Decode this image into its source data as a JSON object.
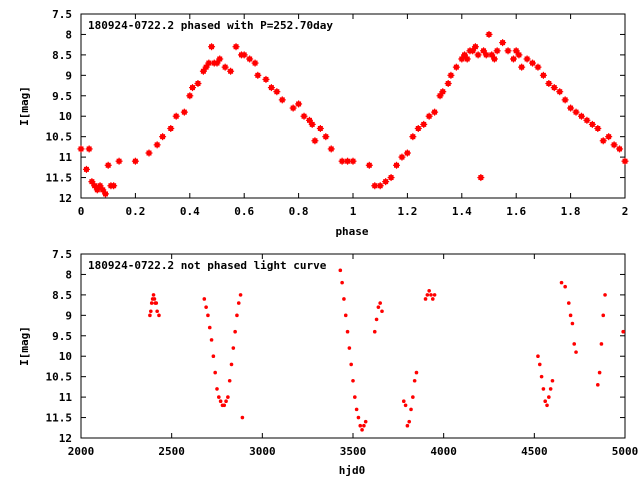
{
  "chart_data": [
    {
      "type": "scatter",
      "title": "180924-0722.2 phased with P=252.70day",
      "xlabel": "phase",
      "ylabel": "I[mag]",
      "xlim": [
        0,
        2
      ],
      "ylim": [
        12,
        7.5
      ],
      "y_inverted": true,
      "x_ticks": [
        0,
        0.2,
        0.4,
        0.6,
        0.8,
        1,
        1.2,
        1.4,
        1.6,
        1.8,
        2
      ],
      "y_ticks": [
        7.5,
        8,
        8.5,
        9,
        9.5,
        10,
        10.5,
        11,
        11.5,
        12
      ],
      "marker": "plus-star",
      "color": "#ff0000",
      "series": [
        {
          "x": [
            0.0,
            0.02,
            0.03,
            0.04,
            0.05,
            0.06,
            0.07,
            0.08,
            0.09,
            0.1,
            0.11,
            0.12,
            0.14,
            0.2,
            0.25,
            0.28,
            0.3,
            0.33,
            0.35,
            0.38,
            0.4,
            0.41,
            0.43,
            0.45,
            0.46,
            0.47,
            0.48,
            0.49,
            0.5,
            0.51,
            0.53,
            0.55,
            0.57,
            0.59,
            0.6,
            0.62,
            0.64,
            0.65,
            0.68,
            0.7,
            0.72,
            0.74,
            0.78,
            0.8,
            0.82,
            0.84,
            0.85,
            0.86,
            0.88,
            0.9,
            0.92,
            0.96,
            0.98,
            1.0,
            1.06,
            1.08,
            1.1,
            1.12,
            1.14,
            1.16,
            1.18,
            1.2,
            1.22,
            1.24,
            1.26,
            1.28,
            1.3,
            1.32,
            1.33,
            1.35,
            1.36,
            1.38,
            1.4,
            1.41,
            1.42,
            1.43,
            1.44,
            1.45,
            1.46,
            1.47,
            1.48,
            1.49,
            1.5,
            1.51,
            1.52,
            1.53,
            1.55,
            1.57,
            1.59,
            1.6,
            1.61,
            1.62,
            1.64,
            1.66,
            1.68,
            1.7,
            1.72,
            1.74,
            1.76,
            1.78,
            1.8,
            1.82,
            1.84,
            1.86,
            1.88,
            1.9,
            1.92,
            1.94,
            1.96,
            1.98,
            2.0
          ],
          "y": [
            10.8,
            11.3,
            10.8,
            11.6,
            11.7,
            11.8,
            11.7,
            11.8,
            11.9,
            11.2,
            11.7,
            11.7,
            11.1,
            11.1,
            10.9,
            10.7,
            10.5,
            10.3,
            10.0,
            9.9,
            9.5,
            9.3,
            9.2,
            8.9,
            8.8,
            8.7,
            8.3,
            8.7,
            8.7,
            8.6,
            8.8,
            8.9,
            8.3,
            8.5,
            8.5,
            8.6,
            8.7,
            9.0,
            9.1,
            9.3,
            9.4,
            9.6,
            9.8,
            9.7,
            10.0,
            10.1,
            10.2,
            10.6,
            10.3,
            10.5,
            10.8,
            11.1,
            11.1,
            11.1,
            11.2,
            11.7,
            11.7,
            11.6,
            11.5,
            11.2,
            11.0,
            10.9,
            10.5,
            10.3,
            10.2,
            10.0,
            9.9,
            9.5,
            9.4,
            9.2,
            9.0,
            8.8,
            8.6,
            8.5,
            8.6,
            8.4,
            8.4,
            8.3,
            8.5,
            11.5,
            8.4,
            8.5,
            8.0,
            8.5,
            8.6,
            8.4,
            8.2,
            8.4,
            8.6,
            8.4,
            8.5,
            8.8,
            8.6,
            8.7,
            8.8,
            9.0,
            9.2,
            9.3,
            9.4,
            9.6,
            9.8,
            9.9,
            10.0,
            10.1,
            10.2,
            10.3,
            10.6,
            10.5,
            10.7,
            10.8,
            11.1
          ]
        }
      ]
    },
    {
      "type": "scatter",
      "title": "180924-0722.2 not phased light curve",
      "xlabel": "hjd0",
      "ylabel": "I[mag]",
      "xlim": [
        2000,
        5000
      ],
      "ylim": [
        12,
        7.5
      ],
      "y_inverted": true,
      "x_ticks": [
        2000,
        2500,
        3000,
        3500,
        4000,
        4500,
        5000
      ],
      "y_ticks": [
        7.5,
        8,
        8.5,
        9,
        9.5,
        10,
        10.5,
        11,
        11.5,
        12
      ],
      "marker": "dot",
      "color": "#ff0000",
      "series": [
        {
          "x": [
            2380,
            2385,
            2390,
            2395,
            2400,
            2405,
            2410,
            2415,
            2420,
            2430,
            2680,
            2690,
            2700,
            2710,
            2720,
            2730,
            2740,
            2750,
            2760,
            2770,
            2780,
            2790,
            2800,
            2810,
            2820,
            2830,
            2840,
            2850,
            2860,
            2870,
            2880,
            2890,
            3430,
            3440,
            3450,
            3460,
            3470,
            3480,
            3490,
            3500,
            3510,
            3520,
            3530,
            3540,
            3550,
            3560,
            3570,
            3620,
            3630,
            3640,
            3650,
            3660,
            3780,
            3790,
            3800,
            3810,
            3820,
            3830,
            3840,
            3850,
            3900,
            3910,
            3920,
            3930,
            3940,
            3950,
            4520,
            4530,
            4540,
            4550,
            4560,
            4570,
            4580,
            4590,
            4600,
            4650,
            4670,
            4690,
            4700,
            4710,
            4720,
            4730,
            4850,
            4860,
            4870,
            4880,
            4890,
            4990
          ],
          "y": [
            9.0,
            8.9,
            8.7,
            8.6,
            8.5,
            8.6,
            8.7,
            8.7,
            8.9,
            9.0,
            8.6,
            8.8,
            9.0,
            9.3,
            9.6,
            10.0,
            10.4,
            10.8,
            11.0,
            11.1,
            11.2,
            11.2,
            11.1,
            11.0,
            10.6,
            10.2,
            9.8,
            9.4,
            9.0,
            8.7,
            8.5,
            11.5,
            7.9,
            8.2,
            8.6,
            9.0,
            9.4,
            9.8,
            10.2,
            10.6,
            11.0,
            11.3,
            11.5,
            11.7,
            11.8,
            11.7,
            11.6,
            9.4,
            9.1,
            8.8,
            8.7,
            8.9,
            11.1,
            11.2,
            11.7,
            11.6,
            11.3,
            11.0,
            10.6,
            10.4,
            8.6,
            8.5,
            8.4,
            8.5,
            8.6,
            8.5,
            10.0,
            10.2,
            10.5,
            10.8,
            11.1,
            11.2,
            11.0,
            10.8,
            10.6,
            8.2,
            8.3,
            8.7,
            9.0,
            9.2,
            9.7,
            9.9,
            10.7,
            10.4,
            9.7,
            9.0,
            8.5,
            9.4
          ]
        }
      ]
    }
  ]
}
